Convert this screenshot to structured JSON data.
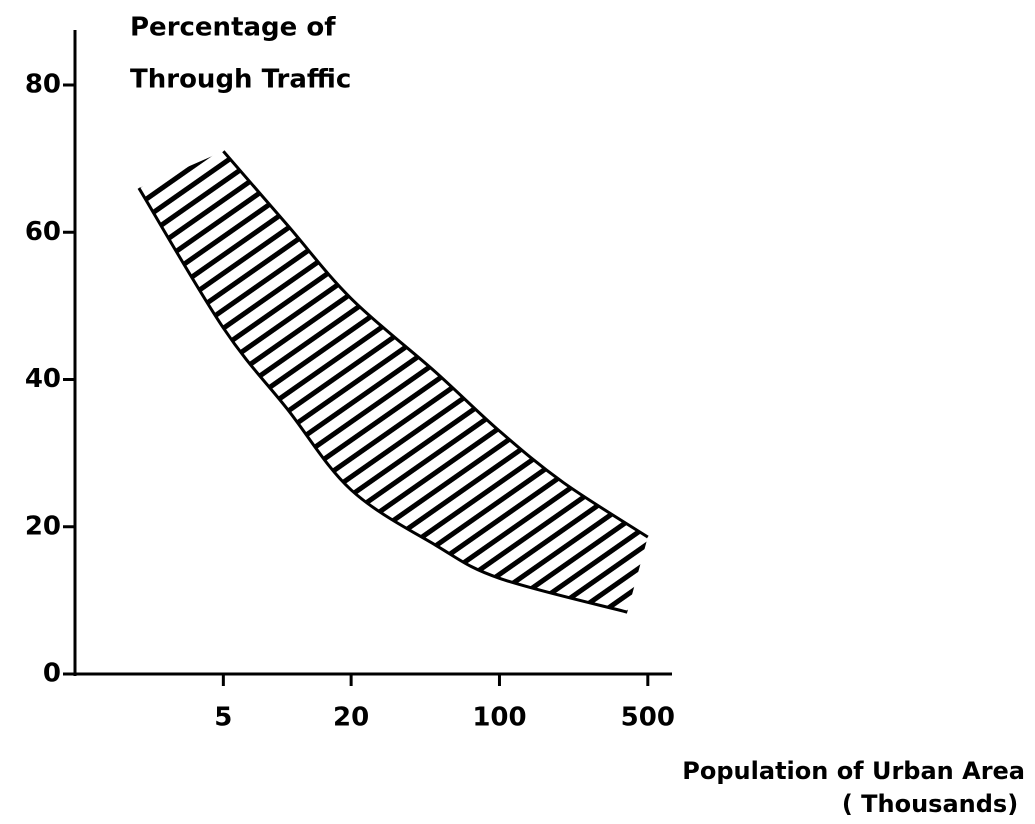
{
  "chart_data": {
    "type": "band",
    "ylabel": [
      "Percentage of",
      "Through Traffic"
    ],
    "xlabel": [
      "Population of Urban Area",
      "( Thousands)"
    ],
    "xlog": true,
    "xlim": [
      1,
      650
    ],
    "ylim": [
      0,
      80
    ],
    "xticks": [
      5,
      20,
      100,
      500
    ],
    "yticks": [
      0,
      20,
      40,
      60,
      80
    ],
    "lines": [
      {
        "x": [
          5,
          10,
          20,
          50,
          100,
          200,
          500
        ],
        "values": [
          71,
          61,
          51,
          41,
          33,
          26,
          18.6
        ]
      },
      {
        "x": [
          2,
          5,
          10,
          20,
          50,
          100,
          400
        ],
        "values": [
          66,
          47,
          36,
          25,
          17.5,
          13,
          8.4
        ]
      }
    ],
    "hatched": true
  }
}
